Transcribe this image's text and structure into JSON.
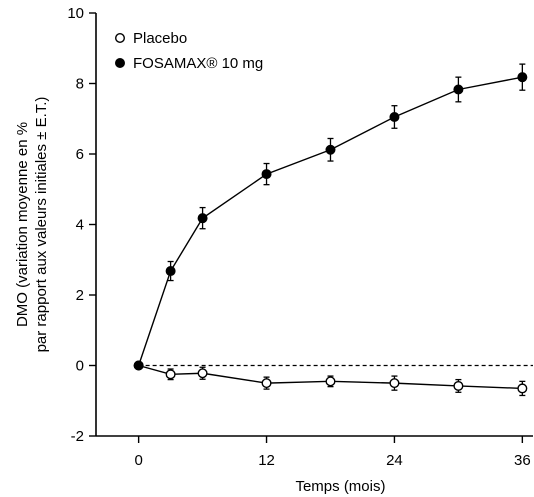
{
  "chart_data": {
    "type": "line",
    "xlabel": "Temps (mois)",
    "ylabel_lines": [
      "DMO (variation moyenne en %",
      "par rapport aux valeurs initiales ± E.T.)"
    ],
    "xlim": [
      -4,
      37
    ],
    "ylim": [
      -2,
      10
    ],
    "xticks": [
      0,
      12,
      24,
      36
    ],
    "yticks": [
      -2,
      0,
      2,
      4,
      6,
      8,
      10
    ],
    "reference_line": {
      "y": 0,
      "style": "dashed"
    },
    "legend_position": "top-left",
    "grid": false,
    "series": [
      {
        "name": "Placebo",
        "marker": "open-circle",
        "color": "#000000",
        "x": [
          0,
          3,
          6,
          12,
          18,
          24,
          30,
          36
        ],
        "y": [
          0,
          -0.25,
          -0.22,
          -0.5,
          -0.45,
          -0.5,
          -0.58,
          -0.65
        ],
        "err": [
          0,
          0.15,
          0.17,
          0.17,
          0.15,
          0.2,
          0.18,
          0.2
        ]
      },
      {
        "name": "FOSAMAX® 10 mg",
        "marker": "filled-circle",
        "color": "#000000",
        "x": [
          0,
          3,
          6,
          12,
          18,
          24,
          30,
          36
        ],
        "y": [
          0,
          2.68,
          4.18,
          5.43,
          6.12,
          7.05,
          7.83,
          8.18
        ],
        "err": [
          0,
          0.27,
          0.3,
          0.3,
          0.32,
          0.32,
          0.35,
          0.37
        ]
      }
    ]
  }
}
